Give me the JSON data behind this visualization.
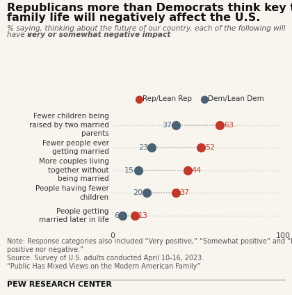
{
  "title_line1": "Republicans more than Democrats think key trends in",
  "title_line2": "family life will negatively affect the U.S.",
  "subtitle_normal": "% saying, thinking about the future of our country, each of the following will\nhave a ",
  "subtitle_bold_italic": "very or somewhat negative impact",
  "categories": [
    "Fewer children being\nraised by two married\nparents",
    "Fewer people ever\ngetting married",
    "More couples living\ntogether without\nbeing married",
    "People having fewer\nchildren",
    "People getting\nmarried later in life"
  ],
  "rep_values": [
    63,
    52,
    44,
    37,
    13
  ],
  "dem_values": [
    37,
    23,
    15,
    20,
    6
  ],
  "rep_color": "#C0392B",
  "dem_color": "#4A6274",
  "rep_label": "Rep/Lean Rep",
  "dem_label": "Dem/Lean Dem",
  "xlim": [
    0,
    100
  ],
  "note_line1": "Note: Response categories also included “Very positive,” “Somewhat positive” and “Neither",
  "note_line2": "positive nor negative.”",
  "note_line3": "Source: Survey of U.S. adults conducted April 10-16, 2023.",
  "note_line4": "“Public Has Mixed Views on the Modern American Family”",
  "footer": "PEW RESEARCH CENTER",
  "bg_color": "#F8F5EF",
  "dot_size": 90,
  "line_color": "#BBBBBB",
  "num_color_rep": "#C0392B",
  "num_color_dem": "#4A6274"
}
